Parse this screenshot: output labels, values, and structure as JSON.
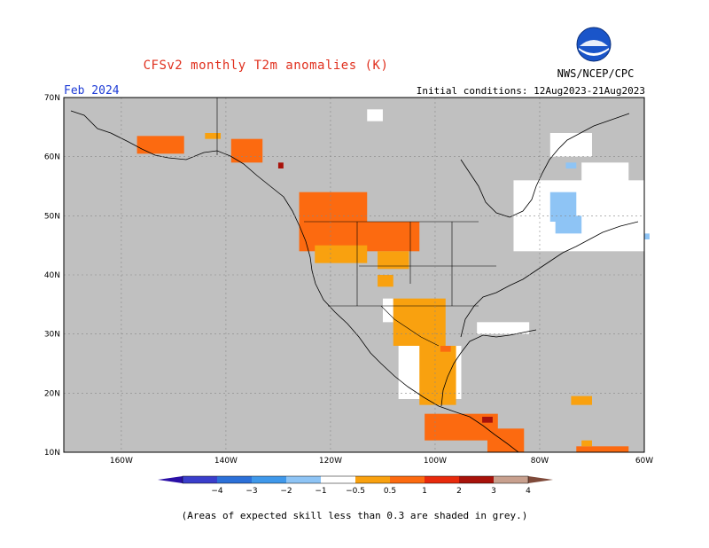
{
  "title": "CFSv2 monthly T2m anomalies (K)",
  "organization": "NWS/NCEP/CPC",
  "month": "Feb 2024",
  "initial_conditions": "Initial conditions: 12Aug2023-21Aug2023",
  "logo_text": "NOAA",
  "footnote": "(Areas of expected skill less than 0.3 are shaded in grey.)",
  "colors": {
    "skill_grey": "#c0c0c0",
    "ocean_white": "#ffffff",
    "title_red": "#e0301e",
    "month_blue": "#1d3bd6"
  },
  "lat_labels": [
    "70N",
    "60N",
    "50N",
    "40N",
    "30N",
    "20N",
    "10N"
  ],
  "lon_labels": [
    "160W",
    "140W",
    "120W",
    "100W",
    "80W",
    "60W"
  ],
  "colorbar": {
    "bins": [
      {
        "color": "#2a0fa6"
      },
      {
        "color": "#3a3ecb"
      },
      {
        "color": "#2c70d8"
      },
      {
        "color": "#3f98ea"
      },
      {
        "color": "#8ec4f5"
      },
      {
        "color": "#ffffff"
      },
      {
        "color": "#f9a10f"
      },
      {
        "color": "#fc6a10"
      },
      {
        "color": "#e82a0c"
      },
      {
        "color": "#a8120a"
      },
      {
        "color": "#c8a08e"
      },
      {
        "color": "#7f4a3a"
      }
    ],
    "tick_labels": [
      "−4",
      "−3",
      "−2",
      "−1",
      "−0.5",
      "0.5",
      "1",
      "2",
      "3",
      "4"
    ]
  },
  "map_data": {
    "lat_range": [
      10,
      70
    ],
    "lon_range": [
      -171,
      -60
    ],
    "anomaly_regions": [
      {
        "name": "alaska-north",
        "color": "#fc6a10",
        "lon": [
          -157,
          -148
        ],
        "lat": [
          60.5,
          63.5
        ]
      },
      {
        "name": "alaska-north-orange",
        "color": "#f9a10f",
        "lon": [
          -144,
          -141
        ],
        "lat": [
          63,
          64
        ]
      },
      {
        "name": "alaska-southeast",
        "color": "#fc6a10",
        "lon": [
          -139,
          -133
        ],
        "lat": [
          59,
          63
        ]
      },
      {
        "name": "yukon-dark",
        "color": "#a8120a",
        "lon": [
          -130,
          -129
        ],
        "lat": [
          58,
          59
        ]
      },
      {
        "name": "pacific-northwest",
        "color": "#fc6a10",
        "lon": [
          -126,
          -113
        ],
        "lat": [
          44,
          54
        ]
      },
      {
        "name": "northern-plains",
        "color": "#fc6a10",
        "lon": [
          -115,
          -103
        ],
        "lat": [
          44,
          49
        ]
      },
      {
        "name": "oregon-orange",
        "color": "#f9a10f",
        "lon": [
          -123,
          -113
        ],
        "lat": [
          42,
          45
        ]
      },
      {
        "name": "wyoming-orange",
        "color": "#f9a10f",
        "lon": [
          -111,
          -105
        ],
        "lat": [
          41,
          44
        ]
      },
      {
        "name": "utah-orange",
        "color": "#f9a10f",
        "lon": [
          -111,
          -108
        ],
        "lat": [
          38,
          40
        ]
      },
      {
        "name": "texas-orange",
        "color": "#f9a10f",
        "lon": [
          -108,
          -98
        ],
        "lat": [
          28,
          36
        ]
      },
      {
        "name": "mexico-orange",
        "color": "#f9a10f",
        "lon": [
          -103,
          -96
        ],
        "lat": [
          18,
          28
        ]
      },
      {
        "name": "texas-red",
        "color": "#fc6a10",
        "lon": [
          -99,
          -97
        ],
        "lat": [
          27,
          28
        ]
      },
      {
        "name": "mexico-south-red",
        "color": "#fc6a10",
        "lon": [
          -102,
          -88
        ],
        "lat": [
          12,
          16.5
        ]
      },
      {
        "name": "mexico-dark",
        "color": "#a8120a",
        "lon": [
          -91,
          -89
        ],
        "lat": [
          15,
          16
        ]
      },
      {
        "name": "central-america",
        "color": "#fc6a10",
        "lon": [
          -90,
          -83
        ],
        "lat": [
          10,
          14
        ]
      },
      {
        "name": "hispaniola",
        "color": "#f9a10f",
        "lon": [
          -74,
          -70
        ],
        "lat": [
          18,
          19.5
        ]
      },
      {
        "name": "venezuela",
        "color": "#fc6a10",
        "lon": [
          -73,
          -63
        ],
        "lat": [
          10,
          11
        ]
      },
      {
        "name": "venezuela-orange",
        "color": "#f9a10f",
        "lon": [
          -72,
          -70
        ],
        "lat": [
          11,
          12
        ]
      },
      {
        "name": "hudson-blue",
        "color": "#8ec4f5",
        "lon": [
          -78,
          -73
        ],
        "lat": [
          49,
          54
        ]
      },
      {
        "name": "quebec-blue",
        "color": "#8ec4f5",
        "lon": [
          -77,
          -72
        ],
        "lat": [
          47,
          50
        ]
      },
      {
        "name": "labrador-blue",
        "color": "#8ec4f5",
        "lon": [
          -75,
          -73
        ],
        "lat": [
          58,
          59
        ]
      },
      {
        "name": "newfoundland-blue",
        "color": "#8ec4f5",
        "lon": [
          -60,
          -59
        ],
        "lat": [
          46,
          47
        ]
      }
    ],
    "white_regions": [
      {
        "name": "quebec-white",
        "lon": [
          -85,
          -60
        ],
        "lat": [
          44,
          56
        ]
      },
      {
        "name": "labrador-white",
        "lon": [
          -72,
          -63
        ],
        "lat": [
          55,
          59
        ]
      },
      {
        "name": "baffin-white",
        "lon": [
          -78,
          -70
        ],
        "lat": [
          60,
          64
        ]
      },
      {
        "name": "canada-north-white",
        "lon": [
          -113,
          -110
        ],
        "lat": [
          66,
          68
        ]
      },
      {
        "name": "mexico-white",
        "lon": [
          -107,
          -95
        ],
        "lat": [
          19,
          28
        ]
      },
      {
        "name": "southwest-white",
        "lon": [
          -110,
          -108
        ],
        "lat": [
          32,
          36
        ]
      },
      {
        "name": "southeast-white",
        "lon": [
          -92,
          -82
        ],
        "lat": [
          30,
          32
        ]
      }
    ]
  }
}
